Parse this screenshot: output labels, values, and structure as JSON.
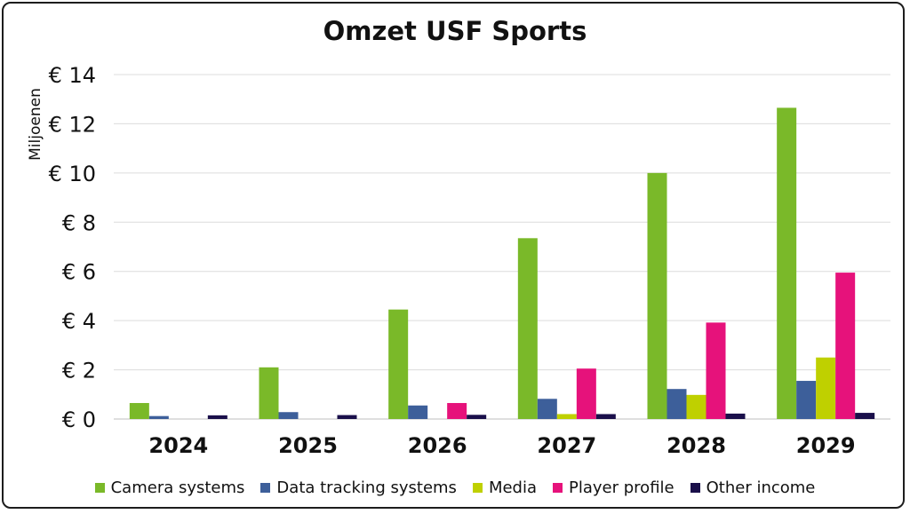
{
  "chart_data": {
    "type": "bar",
    "title": "Omzet USF Sports",
    "ylabel": "Miljoenen",
    "xlabel": "",
    "categories": [
      "2024",
      "2025",
      "2026",
      "2027",
      "2028",
      "2029"
    ],
    "ylim": [
      0,
      14
    ],
    "yticks": [
      0,
      2,
      4,
      6,
      8,
      10,
      12,
      14
    ],
    "ytick_labels": [
      "€ 0",
      "€ 2",
      "€ 4",
      "€ 6",
      "€ 8",
      "€ 10",
      "€ 12",
      "€ 14"
    ],
    "grid": true,
    "legend_position": "bottom",
    "series": [
      {
        "name": "Camera systems",
        "color": "#7ab929",
        "values": [
          0.65,
          2.1,
          4.45,
          7.35,
          10.0,
          12.65
        ]
      },
      {
        "name": "Data tracking systems",
        "color": "#3d5f9a",
        "values": [
          0.12,
          0.28,
          0.55,
          0.82,
          1.22,
          1.55
        ]
      },
      {
        "name": "Media",
        "color": "#bfd000",
        "values": [
          0.0,
          0.0,
          0.0,
          0.2,
          0.98,
          2.5
        ]
      },
      {
        "name": "Player profile",
        "color": "#e6127b",
        "values": [
          0.0,
          0.0,
          0.65,
          2.05,
          3.92,
          5.95
        ]
      },
      {
        "name": "Other income",
        "color": "#1a0f4a",
        "values": [
          0.15,
          0.16,
          0.17,
          0.2,
          0.22,
          0.25
        ]
      }
    ]
  }
}
